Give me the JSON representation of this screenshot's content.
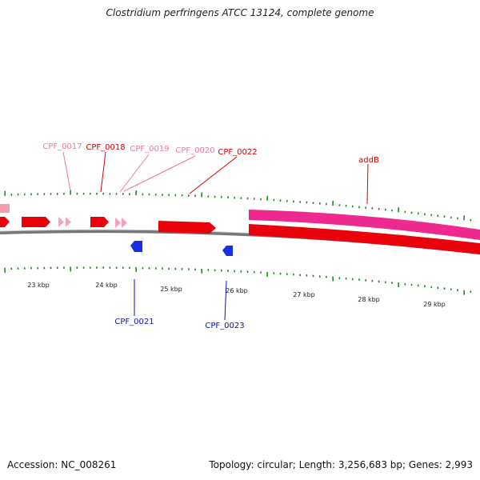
{
  "title": "Clostridium perfringens ATCC 13124, complete genome",
  "footer": {
    "accession": "Accession: NC_008261",
    "summary": "Topology: circular; Length: 3,256,683 bp; Genes: 2,993"
  },
  "colors": {
    "forward_gene": "#e8000a",
    "reverse_gene": "#1a2fe0",
    "pseudo_gene": "#f7a0c0",
    "rna_gene": "#ee2a90",
    "tick": "#1e8a1e",
    "backbone": "#888888",
    "label_forward": "#d40000",
    "label_pseudo": "#e878a0",
    "label_reverse": "#1010c0"
  },
  "ruler": {
    "labels": [
      "23 kbp",
      "24 kbp",
      "25 kbp",
      "26 kbp",
      "27 kbp",
      "28 kbp",
      "29 kbp"
    ]
  },
  "labels": {
    "CPF_0017": "CPF_0017",
    "CPF_0018": "CPF_0018",
    "CPF_0019": "CPF_0019",
    "CPF_0020": "CPF_0020",
    "CPF_0022": "CPF_0022",
    "addB": "addB",
    "CPF_0021": "CPF_0021",
    "CPF_0023": "CPF_0023"
  }
}
